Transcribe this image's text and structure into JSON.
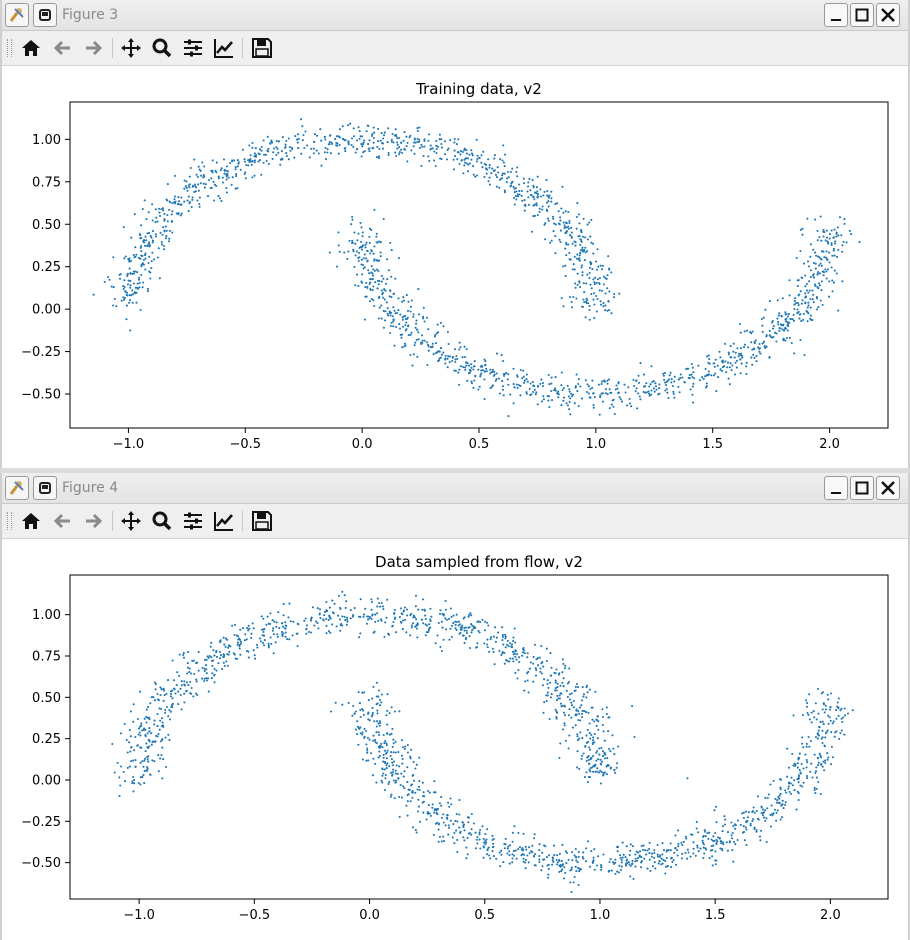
{
  "windows": [
    {
      "title": "Figure 3",
      "chart_data": {
        "type": "scatter",
        "title": "Training data, v2",
        "xlabel": "",
        "ylabel": "",
        "xlim": [
          -1.25,
          2.25
        ],
        "ylim": [
          -0.7,
          1.22
        ],
        "xticks": [
          "−1.0",
          "−0.5",
          "0.0",
          "0.5",
          "1.0",
          "1.5",
          "2.0"
        ],
        "xtick_values": [
          -1.0,
          -0.5,
          0.0,
          0.5,
          1.0,
          1.5,
          2.0
        ],
        "yticks": [
          "−0.50",
          "−0.25",
          "0.00",
          "0.25",
          "0.50",
          "0.75",
          "1.00"
        ],
        "ytick_values": [
          -0.5,
          -0.25,
          0.0,
          0.25,
          0.5,
          0.75,
          1.0
        ],
        "point_color": "#1f77b4",
        "series": [
          {
            "shape": "upper arc",
            "center": [
              0.0,
              0.0
            ],
            "radius": 1.0,
            "angle_range_deg": [
              0,
              180
            ],
            "noise_sd": 0.05,
            "approx_points": 1000
          },
          {
            "shape": "lower arc",
            "center": [
              1.0,
              0.5
            ],
            "radius": 1.0,
            "angle_range_deg": [
              180,
              360
            ],
            "noise_sd": 0.05,
            "approx_points": 1000
          }
        ]
      }
    },
    {
      "title": "Figure 4",
      "chart_data": {
        "type": "scatter",
        "title": "Data sampled from flow, v2",
        "xlabel": "",
        "ylabel": "",
        "xlim": [
          -1.3,
          2.25
        ],
        "ylim": [
          -0.72,
          1.24
        ],
        "xticks": [
          "−1.0",
          "−0.5",
          "0.0",
          "0.5",
          "1.0",
          "1.5",
          "2.0"
        ],
        "xtick_values": [
          -1.0,
          -0.5,
          0.0,
          0.5,
          1.0,
          1.5,
          2.0
        ],
        "yticks": [
          "−0.50",
          "−0.25",
          "0.00",
          "0.25",
          "0.50",
          "0.75",
          "1.00"
        ],
        "ytick_values": [
          -0.5,
          -0.25,
          0.0,
          0.25,
          0.5,
          0.75,
          1.0
        ],
        "point_color": "#1f77b4",
        "series": [
          {
            "shape": "upper arc",
            "center": [
              0.0,
              0.0
            ],
            "radius": 1.0,
            "angle_range_deg": [
              0,
              180
            ],
            "noise_sd": 0.055,
            "approx_points": 1000
          },
          {
            "shape": "lower arc",
            "center": [
              1.0,
              0.5
            ],
            "radius": 1.0,
            "angle_range_deg": [
              180,
              360
            ],
            "noise_sd": 0.055,
            "approx_points": 1000
          }
        ],
        "outliers": [
          [
            1.38,
            0.01
          ],
          [
            0.69,
            0.53
          ],
          [
            1.15,
            0.26
          ]
        ]
      }
    }
  ],
  "toolbar_icons": [
    "home-icon",
    "back-arrow-icon",
    "forward-arrow-icon",
    "pan-icon",
    "zoom-icon",
    "configure-subplots-icon",
    "edit-axes-icon",
    "save-icon"
  ],
  "window_controls": [
    "minimize-icon",
    "maximize-icon",
    "close-icon"
  ]
}
